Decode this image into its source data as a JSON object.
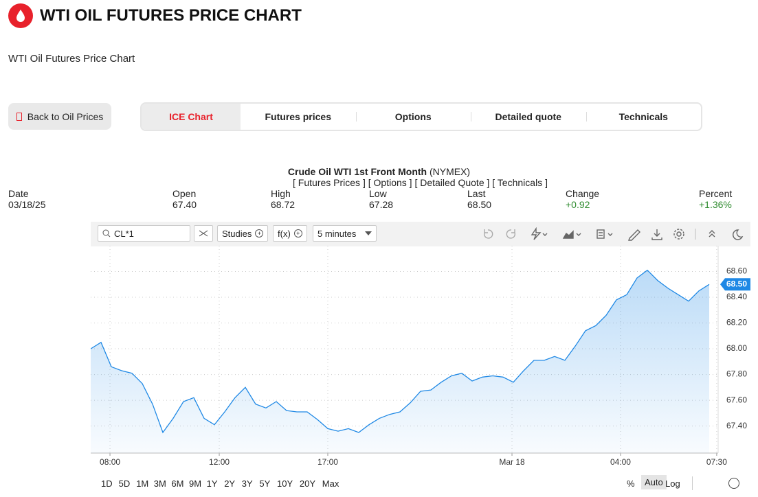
{
  "header": {
    "title": "WTI OIL FUTURES PRICE CHART",
    "subtitle": "WTI Oil Futures Price Chart"
  },
  "nav": {
    "back": "Back to Oil Prices",
    "tabs": [
      "ICE Chart",
      "Futures prices",
      "Options",
      "Detailed quote",
      "Technicals"
    ]
  },
  "quote": {
    "name": "Crude Oil WTI 1st Front Month",
    "exchange": "(NYMEX)",
    "links": [
      "[ Futures Prices ]",
      "[ Options ]",
      "[ Detailed Quote ]",
      "[ Technicals ]"
    ],
    "columns": [
      {
        "label": "Date",
        "value": "03/18/25"
      },
      {
        "label": "Open",
        "value": "67.40"
      },
      {
        "label": "High",
        "value": "68.72"
      },
      {
        "label": "Low",
        "value": "67.28"
      },
      {
        "label": "Last",
        "value": "68.50"
      },
      {
        "label": "Change",
        "value": "+0.92"
      },
      {
        "label": "Percent",
        "value": "+1.36%"
      }
    ]
  },
  "toolbar": {
    "symbol": "CL*1",
    "studies": "Studies",
    "fx": "f(x)",
    "interval": "5 minutes",
    "ranges": [
      "1D",
      "5D",
      "1M",
      "3M",
      "6M",
      "9M",
      "1Y",
      "2Y",
      "3Y",
      "5Y",
      "10Y",
      "20Y",
      "Max"
    ],
    "scale_options": [
      "%",
      "Auto",
      "Log"
    ]
  },
  "chart_data": {
    "type": "area",
    "color": "#1e88e5",
    "values": [
      68.0,
      68.05,
      67.86,
      67.83,
      67.81,
      67.73,
      67.57,
      67.35,
      67.46,
      67.59,
      67.62,
      67.46,
      67.41,
      67.51,
      67.62,
      67.7,
      67.57,
      67.54,
      67.59,
      67.52,
      67.51,
      67.51,
      67.45,
      67.38,
      67.36,
      67.38,
      67.35,
      67.41,
      67.46,
      67.49,
      67.51,
      67.58,
      67.67,
      67.68,
      67.74,
      67.79,
      67.81,
      67.75,
      67.78,
      67.79,
      67.78,
      67.74,
      67.83,
      67.91,
      67.91,
      67.94,
      67.91,
      68.02,
      68.14,
      68.18,
      68.26,
      68.38,
      68.42,
      68.55,
      68.61,
      68.53,
      68.47,
      68.42,
      68.37,
      68.45,
      68.5
    ],
    "xlim": [
      0,
      60.87
    ],
    "xticks": [
      {
        "value": 1.87,
        "label": "08:00"
      },
      {
        "value": 12.47,
        "label": "12:00"
      },
      {
        "value": 23,
        "label": "17:00"
      },
      {
        "value": 40.87,
        "label": "Mar 18"
      },
      {
        "value": 51.4,
        "label": "04:00"
      },
      {
        "value": 60.73,
        "label": "07:30"
      }
    ],
    "ylim": [
      67.19,
      68.8
    ],
    "yticks": [
      {
        "value": 67.4,
        "label": "67.40"
      },
      {
        "value": 67.6,
        "label": "67.60"
      },
      {
        "value": 67.8,
        "label": "67.80"
      },
      {
        "value": 68.0,
        "label": "68.00"
      },
      {
        "value": 68.2,
        "label": "68.20"
      },
      {
        "value": 68.4,
        "label": "68.40"
      },
      {
        "value": 68.6,
        "label": "68.60"
      }
    ],
    "grid": true
  }
}
